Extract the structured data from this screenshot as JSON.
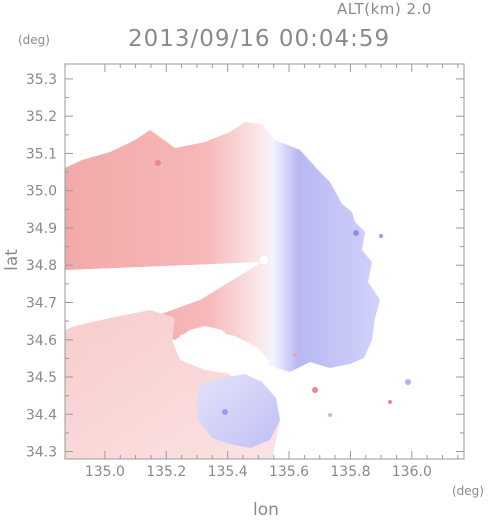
{
  "header": {
    "altitude_label": "ALT(km) 2.0",
    "timestamp": "2013/09/16 00:04:59"
  },
  "axes": {
    "y_unit": "(deg)",
    "x_unit": "(deg)",
    "xlabel": "lon",
    "ylabel": "lat"
  },
  "chart_data": {
    "type": "heatmap",
    "title": "2013/09/16 00:04:59",
    "subtitle": "ALT(km) 2.0",
    "xlabel": "lon",
    "ylabel": "lat",
    "x_unit": "(deg)",
    "y_unit": "(deg)",
    "xlim": [
      134.87,
      136.17
    ],
    "ylim": [
      34.28,
      35.34
    ],
    "x_ticks": [
      135.0,
      135.2,
      135.4,
      135.6,
      135.8,
      136.0
    ],
    "x_tick_labels": [
      "135.0",
      "135.2",
      "135.4",
      "135.6",
      "135.8",
      "136.0"
    ],
    "y_ticks": [
      34.3,
      34.4,
      34.5,
      34.6,
      34.7,
      34.8,
      34.9,
      35.0,
      35.1,
      35.2,
      35.3
    ],
    "y_tick_labels": [
      "34.3",
      "34.4",
      "34.5",
      "34.6",
      "34.7",
      "34.8",
      "34.9",
      "35.0",
      "35.1",
      "35.2",
      "35.3"
    ],
    "radar_center": {
      "lon": 135.52,
      "lat": 34.82
    },
    "colors": {
      "negative": "#e85a5a",
      "positive": "#5a5ae8",
      "zero": "#ffffff"
    },
    "regions": [
      {
        "name": "main-echo",
        "value_sign": "mixed"
      },
      {
        "name": "south-sector",
        "value_sign": "negative"
      },
      {
        "name": "south-blob",
        "value_sign": "positive"
      }
    ]
  }
}
